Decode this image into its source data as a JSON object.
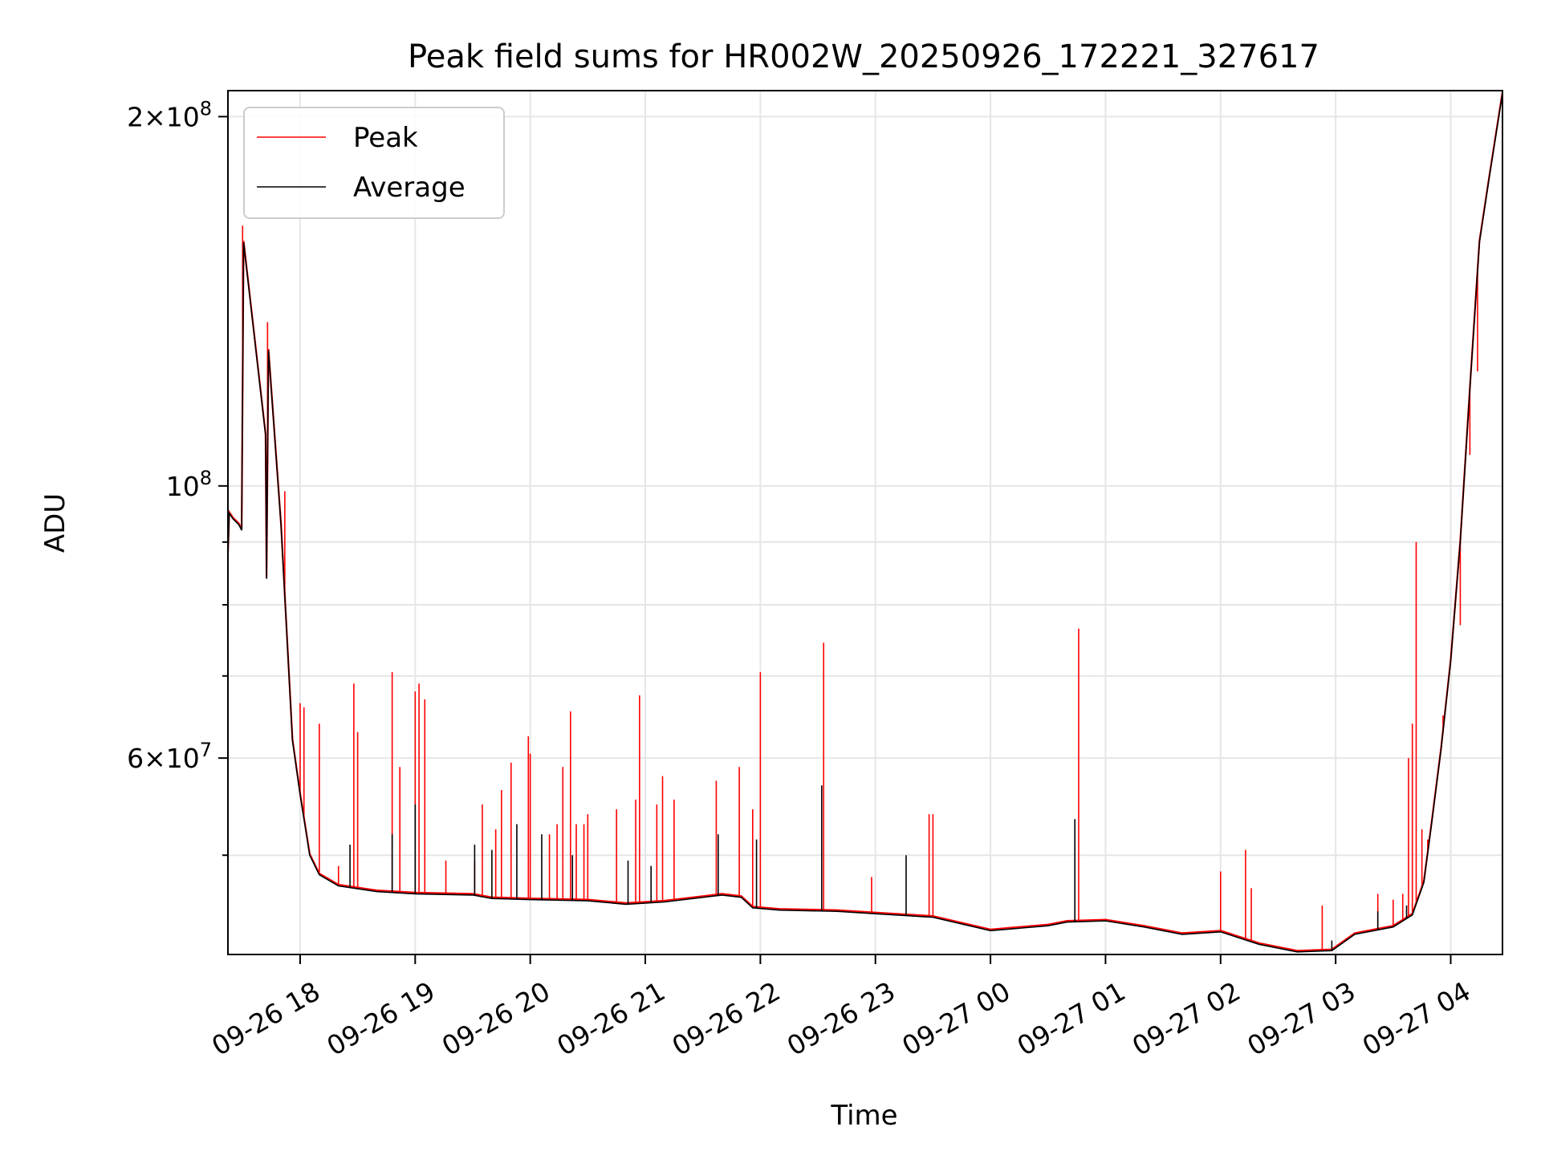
{
  "chart_data": {
    "type": "line",
    "title": "Peak field sums for HR002W_20250926_172221_327617",
    "xlabel": "Time",
    "ylabel": "ADU",
    "y_scale": "log",
    "ylim": [
      41500000,
      210000000
    ],
    "xlim": [
      "2025-09-26T17:22:21",
      "2025-09-27T04:27:00"
    ],
    "grid": true,
    "legend_position": "top-left",
    "x_ticks": [
      {
        "t": "2025-09-26T18:00",
        "label": "09-26 18"
      },
      {
        "t": "2025-09-26T19:00",
        "label": "09-26 19"
      },
      {
        "t": "2025-09-26T20:00",
        "label": "09-26 20"
      },
      {
        "t": "2025-09-26T21:00",
        "label": "09-26 21"
      },
      {
        "t": "2025-09-26T22:00",
        "label": "09-26 22"
      },
      {
        "t": "2025-09-26T23:00",
        "label": "09-26 23"
      },
      {
        "t": "2025-09-27T00:00",
        "label": "09-27 00"
      },
      {
        "t": "2025-09-27T01:00",
        "label": "09-27 01"
      },
      {
        "t": "2025-09-27T02:00",
        "label": "09-27 02"
      },
      {
        "t": "2025-09-27T03:00",
        "label": "09-27 03"
      },
      {
        "t": "2025-09-27T04:00",
        "label": "09-27 04"
      }
    ],
    "y_major_ticks": [
      {
        "v": 60000000,
        "base": "6",
        "exp": "7"
      },
      {
        "v": 100000000,
        "base": "",
        "exp": "8"
      },
      {
        "v": 200000000,
        "base": "2",
        "exp": "8"
      }
    ],
    "y_minor_ticks": [
      50000000,
      70000000,
      80000000,
      90000000
    ],
    "series": [
      {
        "name": "Average",
        "color": "#000000",
        "points": [
          [
            "2025-09-26T17:22:21",
            88000000
          ],
          [
            "2025-09-26T17:23:00",
            95000000
          ],
          [
            "2025-09-26T17:25:00",
            94000000
          ],
          [
            "2025-09-26T17:28:00",
            93000000
          ],
          [
            "2025-09-26T17:29:30",
            92000000
          ],
          [
            "2025-09-26T17:30:30",
            158000000
          ],
          [
            "2025-09-26T17:42:00",
            110000000
          ],
          [
            "2025-09-26T17:42:30",
            84000000
          ],
          [
            "2025-09-26T17:43:30",
            129000000
          ],
          [
            "2025-09-26T17:50:00",
            93000000
          ],
          [
            "2025-09-26T17:56:00",
            62000000
          ],
          [
            "2025-09-26T18:00:00",
            56000000
          ],
          [
            "2025-09-26T18:05:00",
            50000000
          ],
          [
            "2025-09-26T18:10:00",
            48200000
          ],
          [
            "2025-09-26T18:20:00",
            47200000
          ],
          [
            "2025-09-26T18:40:00",
            46700000
          ],
          [
            "2025-09-26T19:00:00",
            46500000
          ],
          [
            "2025-09-26T19:30:00",
            46400000
          ],
          [
            "2025-09-26T19:40:00",
            46100000
          ],
          [
            "2025-09-26T20:00:00",
            46000000
          ],
          [
            "2025-09-26T20:30:00",
            45900000
          ],
          [
            "2025-09-26T20:50:00",
            45600000
          ],
          [
            "2025-09-26T21:10:00",
            45800000
          ],
          [
            "2025-09-26T21:40:00",
            46400000
          ],
          [
            "2025-09-26T21:50:00",
            46200000
          ],
          [
            "2025-09-26T21:56:00",
            45300000
          ],
          [
            "2025-09-26T22:10:00",
            45100000
          ],
          [
            "2025-09-26T22:40:00",
            45000000
          ],
          [
            "2025-09-26T23:00:00",
            44800000
          ],
          [
            "2025-09-26T23:30:00",
            44500000
          ],
          [
            "2025-09-27T00:00:00",
            43400000
          ],
          [
            "2025-09-27T00:30:00",
            43800000
          ],
          [
            "2025-09-27T00:40:00",
            44100000
          ],
          [
            "2025-09-27T01:00:00",
            44200000
          ],
          [
            "2025-09-27T01:20:00",
            43700000
          ],
          [
            "2025-09-27T01:40:00",
            43100000
          ],
          [
            "2025-09-27T02:00:00",
            43300000
          ],
          [
            "2025-09-27T02:20:00",
            42300000
          ],
          [
            "2025-09-27T02:40:00",
            41700000
          ],
          [
            "2025-09-27T02:58:00",
            41800000
          ],
          [
            "2025-09-27T03:10:00",
            43100000
          ],
          [
            "2025-09-27T03:30:00",
            43700000
          ],
          [
            "2025-09-27T03:40:00",
            44700000
          ],
          [
            "2025-09-27T03:46:00",
            47500000
          ],
          [
            "2025-09-27T03:50:00",
            53000000
          ],
          [
            "2025-09-27T03:55:00",
            61000000
          ],
          [
            "2025-09-27T04:00:00",
            72000000
          ],
          [
            "2025-09-27T04:05:00",
            90000000
          ],
          [
            "2025-09-27T04:10:00",
            120000000
          ],
          [
            "2025-09-27T04:15:00",
            158000000
          ],
          [
            "2025-09-27T04:20:00",
            178000000
          ],
          [
            "2025-09-27T04:27:00",
            209000000
          ]
        ],
        "spikes": [
          [
            "2025-09-26T18:26",
            51000000
          ],
          [
            "2025-09-26T18:48",
            52000000
          ],
          [
            "2025-09-26T19:00",
            55000000
          ],
          [
            "2025-09-26T19:31",
            51000000
          ],
          [
            "2025-09-26T19:40",
            50500000
          ],
          [
            "2025-09-26T19:53",
            53000000
          ],
          [
            "2025-09-26T20:06",
            52000000
          ],
          [
            "2025-09-26T20:22",
            50000000
          ],
          [
            "2025-09-26T20:51",
            49500000
          ],
          [
            "2025-09-26T21:03",
            49000000
          ],
          [
            "2025-09-26T21:38",
            52000000
          ],
          [
            "2025-09-26T21:58",
            51500000
          ],
          [
            "2025-09-26T22:32",
            57000000
          ],
          [
            "2025-09-26T23:16",
            50000000
          ],
          [
            "2025-09-27T00:44",
            53500000
          ],
          [
            "2025-09-27T02:58",
            42600000
          ],
          [
            "2025-09-27T03:22",
            45000000
          ],
          [
            "2025-09-27T03:37",
            45500000
          ]
        ]
      },
      {
        "name": "Peak",
        "color": "#ff0000",
        "spikes": [
          [
            "2025-09-26T17:30",
            163000000
          ],
          [
            "2025-09-26T17:43",
            136000000
          ],
          [
            "2025-09-26T17:52",
            99000000
          ],
          [
            "2025-09-26T18:00",
            66500000
          ],
          [
            "2025-09-26T18:02",
            66000000
          ],
          [
            "2025-09-26T18:10",
            64000000
          ],
          [
            "2025-09-26T18:20",
            49000000
          ],
          [
            "2025-09-26T18:28",
            69000000
          ],
          [
            "2025-09-26T18:30",
            63000000
          ],
          [
            "2025-09-26T18:48",
            70500000
          ],
          [
            "2025-09-26T18:52",
            59000000
          ],
          [
            "2025-09-26T19:00",
            68000000
          ],
          [
            "2025-09-26T19:02",
            69000000
          ],
          [
            "2025-09-26T19:05",
            67000000
          ],
          [
            "2025-09-26T19:16",
            49500000
          ],
          [
            "2025-09-26T19:31",
            49500000
          ],
          [
            "2025-09-26T19:35",
            55000000
          ],
          [
            "2025-09-26T19:42",
            52500000
          ],
          [
            "2025-09-26T19:45",
            56500000
          ],
          [
            "2025-09-26T19:50",
            59500000
          ],
          [
            "2025-09-26T19:59",
            62500000
          ],
          [
            "2025-09-26T20:00",
            60500000
          ],
          [
            "2025-09-26T20:10",
            52000000
          ],
          [
            "2025-09-26T20:14",
            53000000
          ],
          [
            "2025-09-26T20:17",
            59000000
          ],
          [
            "2025-09-26T20:21",
            65500000
          ],
          [
            "2025-09-26T20:24",
            53000000
          ],
          [
            "2025-09-26T20:28",
            53000000
          ],
          [
            "2025-09-26T20:30",
            54000000
          ],
          [
            "2025-09-26T20:45",
            54500000
          ],
          [
            "2025-09-26T20:55",
            55500000
          ],
          [
            "2025-09-26T20:57",
            67500000
          ],
          [
            "2025-09-26T21:06",
            55000000
          ],
          [
            "2025-09-26T21:09",
            58000000
          ],
          [
            "2025-09-26T21:15",
            55500000
          ],
          [
            "2025-09-26T21:37",
            57500000
          ],
          [
            "2025-09-26T21:49",
            59000000
          ],
          [
            "2025-09-26T21:56",
            54500000
          ],
          [
            "2025-09-26T22:00",
            70500000
          ],
          [
            "2025-09-26T22:33",
            74500000
          ],
          [
            "2025-09-26T23:28",
            54000000
          ],
          [
            "2025-09-26T23:30",
            54000000
          ],
          [
            "2025-09-26T22:58",
            48000000
          ],
          [
            "2025-09-27T00:46",
            76500000
          ],
          [
            "2025-09-27T02:00",
            48500000
          ],
          [
            "2025-09-27T02:13",
            50500000
          ],
          [
            "2025-09-27T02:16",
            47000000
          ],
          [
            "2025-09-27T02:53",
            45500000
          ],
          [
            "2025-09-27T03:22",
            46500000
          ],
          [
            "2025-09-27T03:30",
            46000000
          ],
          [
            "2025-09-27T03:35",
            46500000
          ],
          [
            "2025-09-27T03:38",
            60000000
          ],
          [
            "2025-09-27T03:40",
            64000000
          ],
          [
            "2025-09-27T03:42",
            90000000
          ],
          [
            "2025-09-27T03:45",
            52500000
          ],
          [
            "2025-09-27T03:48",
            51500000
          ],
          [
            "2025-09-27T03:56",
            65000000
          ],
          [
            "2025-09-27T03:59",
            69500000
          ],
          [
            "2025-09-27T04:05",
            77000000
          ],
          [
            "2025-09-27T04:10",
            106000000
          ],
          [
            "2025-09-27T04:14",
            124000000
          ]
        ]
      }
    ]
  }
}
